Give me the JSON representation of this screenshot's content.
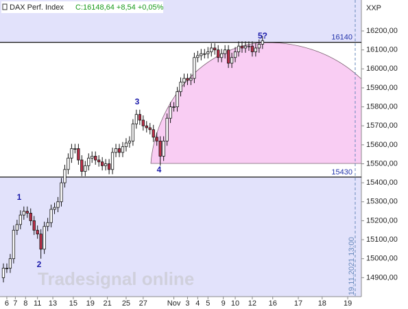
{
  "chart_data": {
    "type": "candlestick",
    "title": "DAX Perf. Index",
    "subtitle": "C:16148,64 +8,54 +0,05%",
    "y_axis_label": "XXP",
    "timestamp": "19.11.2021 13:00",
    "watermark": "Tradesignal online",
    "annotations": [
      "1",
      "2",
      "3",
      "4",
      "5?"
    ],
    "hlines": [
      16140,
      15430
    ],
    "up_color": "#ffffff",
    "down_color": "#c0304a",
    "x": [
      0,
      1,
      2,
      3,
      4,
      5,
      6,
      7,
      8,
      9,
      10,
      11,
      12,
      13,
      14,
      15,
      16,
      17,
      18,
      19,
      20,
      21,
      22,
      23,
      24,
      25,
      26,
      27,
      28,
      29,
      30,
      31,
      32,
      33,
      34,
      35,
      36,
      37,
      38,
      39,
      40,
      41,
      42,
      43,
      44,
      45,
      46,
      47,
      48,
      49,
      50,
      51,
      52,
      53,
      54,
      55,
      56,
      57,
      58,
      59,
      60,
      61,
      62,
      63,
      64,
      65,
      66,
      67,
      68,
      69,
      70,
      71,
      72,
      73,
      74,
      75,
      76
    ],
    "open": [
      14900,
      14950,
      14950,
      15000,
      15150,
      15180,
      15230,
      15250,
      15240,
      15200,
      15150,
      15130,
      15050,
      15170,
      15190,
      15260,
      15270,
      15300,
      15400,
      15470,
      15530,
      15580,
      15580,
      15520,
      15460,
      15490,
      15530,
      15540,
      15520,
      15510,
      15490,
      15500,
      15470,
      15560,
      15580,
      15560,
      15590,
      15610,
      15620,
      15710,
      15760,
      15730,
      15700,
      15690,
      15680,
      15640,
      15620,
      15540,
      15620,
      15740,
      15800,
      15800,
      15880,
      15930,
      15950,
      15940,
      15950,
      16060,
      16070,
      16080,
      16080,
      16090,
      16110,
      16100,
      16060,
      16080,
      16100,
      16030,
      16060,
      16090,
      16120,
      16110,
      16120,
      16120,
      16090,
      16110,
      16130
    ],
    "high": [
      14975,
      14975,
      15025,
      15175,
      15205,
      15255,
      15275,
      15275,
      15265,
      15225,
      15175,
      15155,
      15195,
      15215,
      15285,
      15295,
      15325,
      15425,
      15495,
      15555,
      15605,
      15605,
      15605,
      15545,
      15515,
      15555,
      15565,
      15565,
      15545,
      15535,
      15525,
      15525,
      15585,
      15605,
      15605,
      15615,
      15635,
      15645,
      15735,
      15785,
      15785,
      15755,
      15725,
      15715,
      15705,
      15665,
      15645,
      15645,
      15765,
      15825,
      15825,
      15905,
      15955,
      15975,
      15975,
      15975,
      16085,
      16095,
      16105,
      16105,
      16115,
      16135,
      16135,
      16125,
      16105,
      16125,
      16125,
      16085,
      16115,
      16145,
      16145,
      16145,
      16145,
      16145,
      16135,
      16155,
      16173
    ],
    "low": [
      14875,
      14925,
      14925,
      14975,
      15125,
      15155,
      15205,
      15215,
      15175,
      15125,
      15105,
      15000,
      15025,
      15145,
      15165,
      15235,
      15245,
      15275,
      15375,
      15445,
      15505,
      15555,
      15495,
      15435,
      15435,
      15465,
      15505,
      15495,
      15485,
      15465,
      15465,
      15445,
      15445,
      15535,
      15535,
      15535,
      15565,
      15585,
      15595,
      15685,
      15705,
      15675,
      15665,
      15655,
      15615,
      15595,
      15490,
      15515,
      15595,
      15715,
      15775,
      15775,
      15855,
      15905,
      15915,
      15915,
      15925,
      16035,
      16045,
      16055,
      16055,
      16065,
      16075,
      16035,
      16035,
      16055,
      16005,
      16005,
      16035,
      16065,
      16085,
      16085,
      16095,
      16065,
      16065,
      16085,
      16105
    ],
    "close": [
      14950,
      14950,
      15000,
      15150,
      15180,
      15230,
      15250,
      15240,
      15200,
      15150,
      15130,
      15050,
      15170,
      15190,
      15260,
      15270,
      15300,
      15400,
      15470,
      15530,
      15580,
      15580,
      15520,
      15460,
      15490,
      15530,
      15540,
      15520,
      15510,
      15490,
      15500,
      15470,
      15560,
      15580,
      15560,
      15590,
      15610,
      15620,
      15710,
      15760,
      15730,
      15700,
      15690,
      15680,
      15640,
      15620,
      15540,
      15620,
      15740,
      15800,
      15800,
      15880,
      15930,
      15950,
      15940,
      15950,
      16060,
      16070,
      16080,
      16080,
      16090,
      16110,
      16100,
      16060,
      16080,
      16100,
      16030,
      16060,
      16090,
      16120,
      16110,
      16120,
      16120,
      16090,
      16110,
      16130,
      16148
    ],
    "xlim": [
      -1,
      105
    ],
    "xticks": [
      {
        "value": 1,
        "label": "6"
      },
      {
        "value": 3.5,
        "label": "7"
      },
      {
        "value": 6.5,
        "label": "8"
      },
      {
        "value": 10,
        "label": "11"
      },
      {
        "value": 14.5,
        "label": "13"
      },
      {
        "value": 20.5,
        "label": "15"
      },
      {
        "value": 25.5,
        "label": "19"
      },
      {
        "value": 30.5,
        "label": "21"
      },
      {
        "value": 36,
        "label": "25"
      },
      {
        "value": 41,
        "label": "27"
      },
      {
        "value": 50,
        "label": "Nov"
      },
      {
        "value": 54,
        "label": "3"
      },
      {
        "value": 57,
        "label": "4"
      },
      {
        "value": 60,
        "label": "5"
      },
      {
        "value": 64.5,
        "label": "9"
      },
      {
        "value": 68,
        "label": "10"
      },
      {
        "value": 73,
        "label": "12"
      },
      {
        "value": 79,
        "label": "16"
      },
      {
        "value": 86.5,
        "label": "17"
      },
      {
        "value": 93.5,
        "label": "18"
      },
      {
        "value": 101,
        "label": "19"
      }
    ],
    "ylim": [
      14800,
      16363
    ],
    "yticks": [
      {
        "value": 14900,
        "label": "14900,00"
      },
      {
        "value": 15000,
        "label": "15000,00"
      },
      {
        "value": 15100,
        "label": "15100,00"
      },
      {
        "value": 15200,
        "label": "15200,00"
      },
      {
        "value": 15300,
        "label": "15300,00"
      },
      {
        "value": 15400,
        "label": "15400,00"
      },
      {
        "value": 15500,
        "label": "15500,00"
      },
      {
        "value": 15600,
        "label": "15600,00"
      },
      {
        "value": 15700,
        "label": "15700,00"
      },
      {
        "value": 15800,
        "label": "15800,00"
      },
      {
        "value": 15900,
        "label": "15900,00"
      },
      {
        "value": 16000,
        "label": "16000,00"
      },
      {
        "value": 16100,
        "label": "16100,00"
      },
      {
        "value": 16200,
        "label": "16200,00"
      }
    ]
  }
}
